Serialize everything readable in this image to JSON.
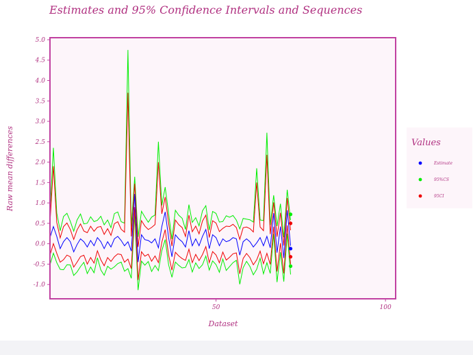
{
  "chart_data": {
    "type": "line",
    "title": "Estimates and 95% Confidence Intervals and Sequences",
    "xlabel": "Dataset",
    "ylabel": "Raw mean differences",
    "xlim": [
      1,
      103
    ],
    "ylim": [
      -1.35,
      5.05
    ],
    "xticks": [
      50,
      100
    ],
    "yticks": [
      -1.0,
      -0.5,
      0.0,
      0.5,
      1.0,
      1.5,
      2.0,
      2.5,
      3.0,
      3.5,
      4.0,
      4.5,
      5.0
    ],
    "legend_title": "Values",
    "legend_position": "right",
    "colors": {
      "accent": "#c040a0",
      "plot_bg": "#fdf5fa",
      "estimate": "#0000ff",
      "ci": "#00ee00",
      "seq": "#ee0000"
    },
    "x": [
      1,
      2,
      3,
      4,
      5,
      6,
      7,
      8,
      9,
      10,
      11,
      12,
      13,
      14,
      15,
      16,
      17,
      18,
      19,
      20,
      21,
      22,
      23,
      24,
      25,
      26,
      27,
      28,
      29,
      30,
      31,
      32,
      33,
      34,
      35,
      36,
      37,
      38,
      39,
      40,
      41,
      42,
      43,
      44,
      45,
      46,
      47,
      48,
      49,
      50,
      51,
      52,
      53,
      54,
      55,
      56,
      57,
      58,
      59,
      60,
      61,
      62,
      63,
      64,
      65,
      66,
      67,
      68,
      69,
      70,
      71,
      72
    ],
    "series": [
      {
        "name": "Estimate",
        "key": "estimate",
        "values": [
          0.15,
          0.42,
          0.18,
          -0.12,
          0.05,
          0.15,
          0.05,
          -0.2,
          -0.02,
          0.12,
          0.05,
          -0.08,
          0.08,
          -0.05,
          0.15,
          0.05,
          -0.12,
          0.05,
          -0.08,
          0.12,
          0.18,
          0.08,
          -0.05,
          0.05,
          -0.18,
          1.22,
          -0.45,
          0.22,
          0.1,
          0.08,
          0.02,
          0.12,
          -0.1,
          0.42,
          0.78,
          0.15,
          -0.32,
          0.22,
          0.12,
          0.05,
          -0.08,
          0.32,
          -0.05,
          0.12,
          -0.05,
          0.18,
          0.35,
          -0.12,
          0.22,
          0.15,
          -0.05,
          0.12,
          0.05,
          0.08,
          0.15,
          0.12,
          -0.28,
          0.05,
          0.12,
          0.05,
          -0.08,
          0.02,
          0.15,
          -0.05,
          0.18,
          -0.1,
          0.75,
          -0.22,
          0.42,
          -0.35,
          0.82,
          -0.05
        ]
      },
      {
        "name": "95%CS",
        "key": "ci",
        "end_values": [
          0.72,
          -0.55
        ]
      },
      {
        "name": "95CI",
        "key": "seq",
        "end_values": [
          0.5,
          -0.32
        ]
      }
    ],
    "end_estimate": -0.12,
    "spikes": [
      {
        "x": 2,
        "ci_upper": 2.35,
        "seq_upper": 1.9
      },
      {
        "x": 24,
        "ci_upper": 4.75,
        "seq_upper": 3.7
      },
      {
        "x": 33,
        "ci_upper": 2.5,
        "seq_upper": 2.0
      },
      {
        "x": 62,
        "ci_upper": 1.85,
        "seq_upper": 1.5
      },
      {
        "x": 65,
        "ci_upper": 2.72,
        "seq_upper": 2.18
      }
    ]
  }
}
